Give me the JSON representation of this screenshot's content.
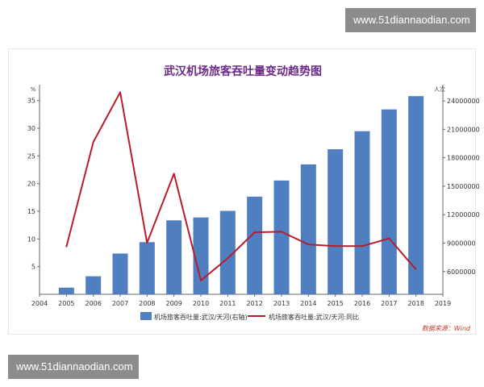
{
  "watermark": {
    "top": "www.51diannaodian.com",
    "bottom": "www.51diannaodian.com"
  },
  "chart_data": {
    "type": "bar",
    "title": "武汉机场旅客吞吐量变动趋势图",
    "left_axis_unit": "%",
    "right_axis_unit": "人次",
    "x_ticks": [
      "2004",
      "2005",
      "2006",
      "2007",
      "2008",
      "2009",
      "2010",
      "2011",
      "2012",
      "2013",
      "2014",
      "2015",
      "2016",
      "2017",
      "2018",
      "2019"
    ],
    "categories": [
      "2005",
      "2006",
      "2007",
      "2008",
      "2009",
      "2010",
      "2011",
      "2012",
      "2013",
      "2014",
      "2015",
      "2016",
      "2017",
      "2018"
    ],
    "xlim": [
      2004,
      2019
    ],
    "left_ylim": [
      0,
      37
    ],
    "left_ticks": [
      "5",
      "10",
      "15",
      "20",
      "25",
      "30",
      "35"
    ],
    "right_ylim": [
      3600000,
      25200000
    ],
    "right_ticks": [
      "6000000",
      "9000000",
      "12000000",
      "15000000",
      "18000000",
      "21000000",
      "24000000"
    ],
    "series": [
      {
        "name": "机场旅客吞吐量:武汉/天河(右轴)",
        "type": "bar",
        "axis": "right",
        "color": "#4f7fc1",
        "values": [
          4300000,
          5500000,
          7900000,
          9100000,
          11400000,
          11700000,
          12400000,
          13900000,
          15600000,
          17300000,
          18900000,
          20800000,
          23100000,
          24500000
        ]
      },
      {
        "name": "机场旅客吞吐量:武汉/天河:同比",
        "type": "line",
        "axis": "left",
        "color": "#b81d2a",
        "values": [
          8.6,
          27.5,
          36.5,
          9.3,
          21.8,
          2.5,
          6.5,
          11.2,
          11.3,
          9.0,
          8.7,
          8.7,
          10.1,
          4.5
        ]
      }
    ],
    "source": "数据来源：Wind",
    "grid": false,
    "legend": "bottom"
  }
}
